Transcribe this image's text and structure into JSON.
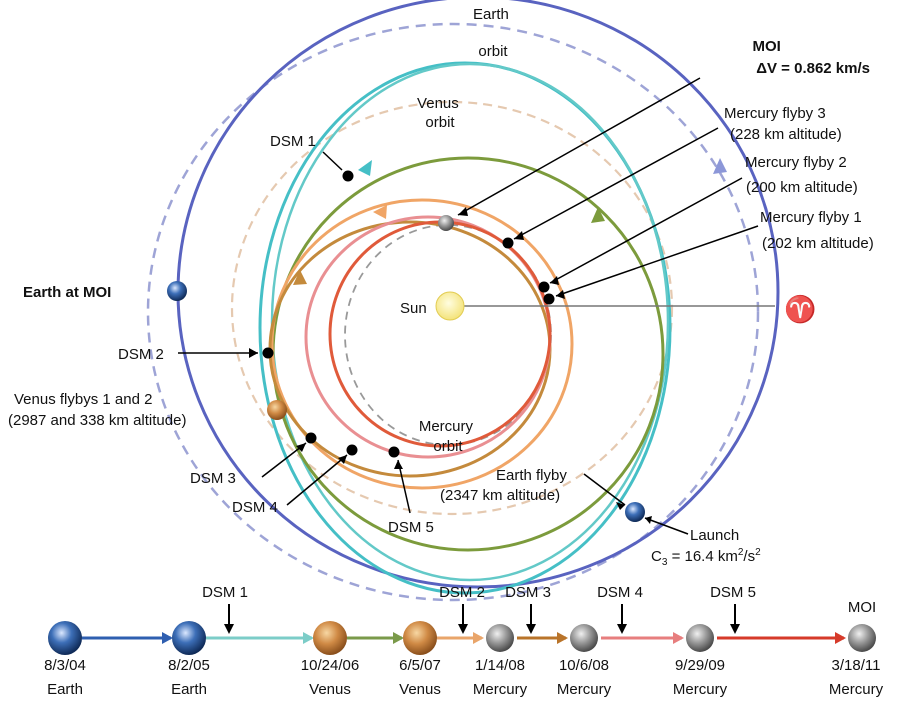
{
  "labels": {
    "earth_orbit": [
      "Earth",
      "orbit"
    ],
    "venus_orbit": [
      "Venus",
      "orbit"
    ],
    "mercury_orbit": [
      "Mercury",
      "orbit"
    ],
    "sun": "Sun",
    "aries": "♈",
    "moi_title": "MOI",
    "moi_dv": "ΔV = 0.862 km/s",
    "flyby3": [
      "Mercury flyby 3",
      "(228 km altitude)"
    ],
    "flyby2": [
      "Mercury flyby 2",
      "(200 km altitude)"
    ],
    "flyby1": [
      "Mercury flyby 1",
      "(202 km altitude)"
    ],
    "earth_at_moi": "Earth at MOI",
    "dsm1": "DSM 1",
    "dsm2": "DSM 2",
    "dsm3": "DSM 3",
    "dsm4": "DSM 4",
    "dsm5": "DSM 5",
    "venus_flybys": [
      "Venus flybys 1 and 2",
      "(2987 and 338 km altitude)"
    ],
    "earth_flyby": [
      "Earth flyby",
      "(2347 km altitude)"
    ],
    "launch": "Launch",
    "c3": "C",
    "c3_sub": "3",
    "c3_val": " = 16.4 km",
    "c3_sup1": "2",
    "c3_mid": "/s",
    "c3_sup2": "2"
  },
  "timeline": {
    "events": [
      {
        "date": "8/3/04",
        "body": "Earth",
        "icon": "earth-icon"
      },
      {
        "date": "8/2/05",
        "body": "Earth",
        "icon": "earth-icon"
      },
      {
        "date": "10/24/06",
        "body": "Venus",
        "icon": "venus-icon"
      },
      {
        "date": "6/5/07",
        "body": "Venus",
        "icon": "venus-icon"
      },
      {
        "date": "1/14/08",
        "body": "Mercury",
        "icon": "mercury-icon"
      },
      {
        "date": "10/6/08",
        "body": "Mercury",
        "icon": "mercury-icon"
      },
      {
        "date": "9/29/09",
        "body": "Mercury",
        "icon": "mercury-icon"
      },
      {
        "date": "3/18/11",
        "body": "Mercury",
        "icon": "mercury-icon"
      }
    ],
    "maneuvers": [
      "DSM 1",
      "DSM 2",
      "DSM 3",
      "DSM 4",
      "DSM 5",
      "MOI"
    ],
    "segment_colors": [
      "#2f5fb0",
      "#7ccdc8",
      "#7a9a4a",
      "#e9a56a",
      "#b9742a",
      "#e77e7e",
      "#d63a2a"
    ]
  }
}
